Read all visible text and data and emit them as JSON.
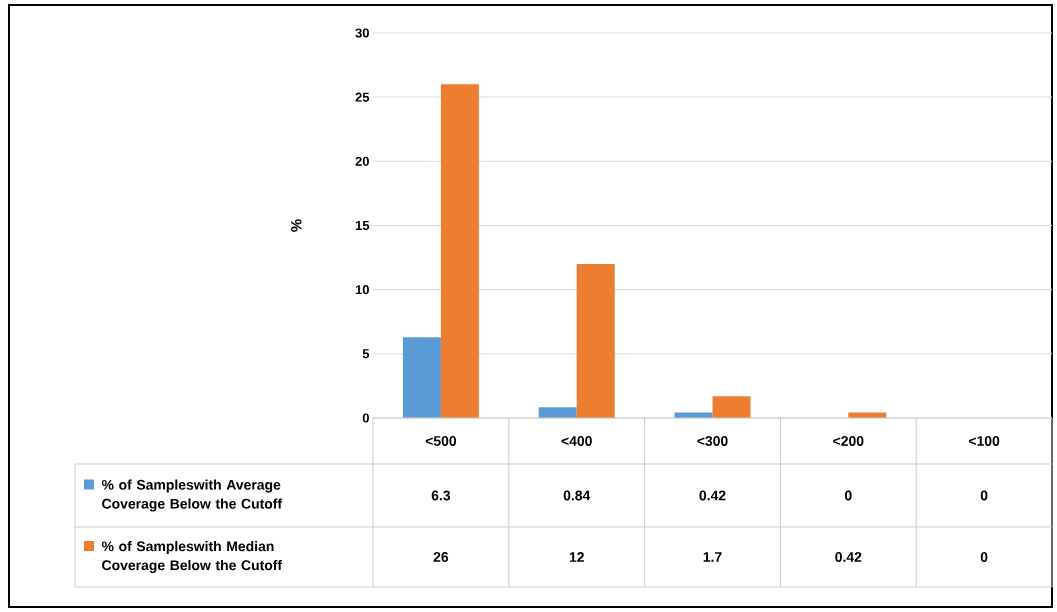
{
  "chart_data": {
    "type": "bar",
    "ylabel": "%",
    "categories": [
      "<500",
      "<400",
      "<300",
      "<200",
      "<100"
    ],
    "series": [
      {
        "name": "% of Sampleswith Average Coverage Below the Cutoff",
        "color": "#5b9bd5",
        "values": [
          6.3,
          0.84,
          0.42,
          0,
          0
        ]
      },
      {
        "name": "% of Sampleswith Median Coverage Below the Cutoff",
        "color": "#ed7d31",
        "values": [
          26,
          12,
          1.7,
          0.42,
          0
        ]
      }
    ],
    "ylim": [
      0,
      30
    ],
    "yticks": [
      0,
      5,
      10,
      15,
      20,
      25,
      30
    ],
    "grid": "y",
    "legend": "bottom left",
    "data_labels": true
  }
}
